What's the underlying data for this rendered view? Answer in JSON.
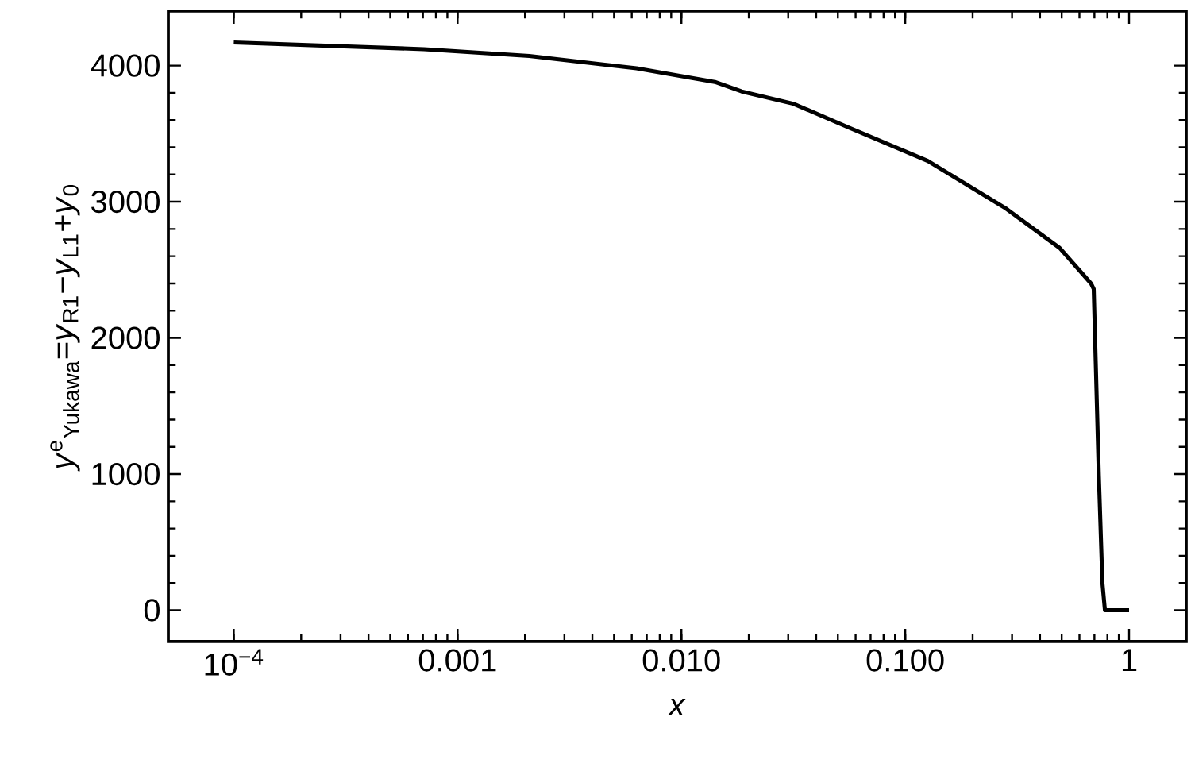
{
  "chart_data": {
    "type": "line",
    "xlabel": "*x*",
    "ylabel": "*y*$^{e}$$_{Yukawa}$=*y*$_{R1}$−*y*$_{L1}$+*y*$_{0}$",
    "log": "x",
    "xlim": [
      5.1e-05,
      1.8
    ],
    "ylim": [
      -230,
      4400
    ],
    "xticks": [
      {
        "value": 0.0001,
        "label": "10$^{−4}$"
      },
      0.001,
      {
        "value": 0.01,
        "label": "0.010"
      },
      {
        "value": 0.1,
        "label": "0.100"
      },
      1
    ],
    "yticks": [
      0,
      1000,
      2000,
      3000,
      4000
    ],
    "grid": false,
    "marker": "none",
    "line_style": "solid",
    "x": [
      0.0001,
      0.000708,
      0.00209,
      0.0063,
      0.0141,
      0.0186,
      0.0316,
      0.055,
      0.126,
      0.282,
      0.49,
      0.676,
      0.695,
      0.733,
      0.76,
      0.78,
      1.0
    ],
    "series": [
      {
        "color": "#000000",
        "values": [
          4170,
          4120,
          4070,
          3980,
          3880,
          3810,
          3720,
          3550,
          3300,
          2950,
          2660,
          2400,
          2360,
          980,
          200,
          0,
          0
        ]
      }
    ]
  }
}
